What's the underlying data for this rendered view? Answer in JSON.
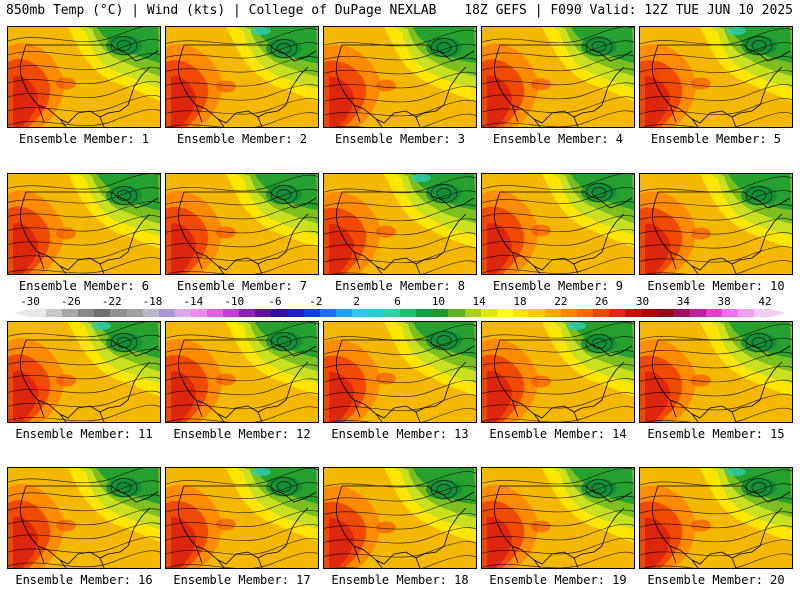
{
  "header": {
    "left": "850mb Temp (°C) | Wind (kts) | College of DuPage NEXLAB",
    "right": "18Z GEFS | F090 Valid: 12Z TUE JUN 10 2025"
  },
  "members": [
    {
      "label": "Ensemble Member: 1"
    },
    {
      "label": "Ensemble Member: 2"
    },
    {
      "label": "Ensemble Member: 3"
    },
    {
      "label": "Ensemble Member: 4"
    },
    {
      "label": "Ensemble Member: 5"
    },
    {
      "label": "Ensemble Member: 6"
    },
    {
      "label": "Ensemble Member: 7"
    },
    {
      "label": "Ensemble Member: 8"
    },
    {
      "label": "Ensemble Member: 9"
    },
    {
      "label": "Ensemble Member: 10"
    },
    {
      "label": "Ensemble Member: 11"
    },
    {
      "label": "Ensemble Member: 12"
    },
    {
      "label": "Ensemble Member: 13"
    },
    {
      "label": "Ensemble Member: 14"
    },
    {
      "label": "Ensemble Member: 15"
    },
    {
      "label": "Ensemble Member: 16"
    },
    {
      "label": "Ensemble Member: 17"
    },
    {
      "label": "Ensemble Member: 18"
    },
    {
      "label": "Ensemble Member: 19"
    },
    {
      "label": "Ensemble Member: 20"
    }
  ],
  "colorbar": {
    "tick_labels": [
      "-30",
      "-26",
      "-22",
      "-18",
      "-14",
      "-10",
      "-6",
      "-2",
      "2",
      "6",
      "10",
      "14",
      "18",
      "22",
      "26",
      "30",
      "34",
      "38",
      "42"
    ],
    "colors": [
      "#e8e8e8",
      "#c8c8c8",
      "#a8a8a8",
      "#888888",
      "#707070",
      "#909090",
      "#a0a0a0",
      "#b8b8c8",
      "#a898d8",
      "#d8a8e8",
      "#f088f0",
      "#e060e0",
      "#c040d0",
      "#9020b0",
      "#6010a0",
      "#3010a0",
      "#2020c8",
      "#1040e0",
      "#2070f0",
      "#20a0f0",
      "#30c8f0",
      "#20d0d0",
      "#30d0a0",
      "#20c070",
      "#10a040",
      "#209830",
      "#60b020",
      "#a8d010",
      "#e0e810",
      "#ffff20",
      "#ffe000",
      "#ffc800",
      "#ffa800",
      "#ff8800",
      "#ff6800",
      "#f04800",
      "#e02818",
      "#c81010",
      "#a80808",
      "#900810",
      "#a01060",
      "#c020a0",
      "#e040d0",
      "#f070f0",
      "#f0a0f0",
      "#f0d0f0"
    ]
  },
  "map_colors": {
    "base": "#f5b800",
    "warm": "#ff8c00",
    "hot": "#f04a00",
    "hotter": "#d82010",
    "cool": "#ffe600",
    "cooler": "#c8e020",
    "green": "#7cc020",
    "dkgreen": "#28a030",
    "deepgreen": "#128a3a",
    "cyan": "#30d0b0"
  }
}
